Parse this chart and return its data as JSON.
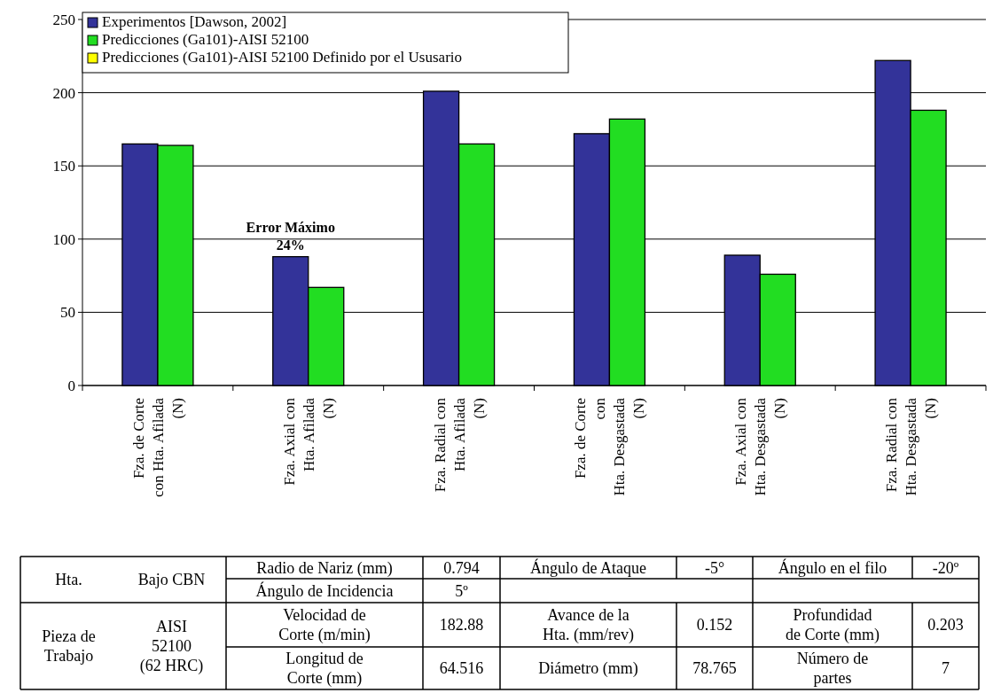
{
  "chart_data": {
    "type": "bar",
    "categories": [
      "Fza. de Corte\ncon Hta. Afilada\n(N)",
      "Fza. Axial con\nHta. Afilada\n(N)",
      "Fza. Radial con\nHta. Afilada\n(N)",
      "Fza. de Corte\ncon\nHta. Desgastada\n(N)",
      "Fza. Axial con\nHta. Desgastada\n(N)",
      "Fza. Radial con\nHta. Desgastada\n(N)"
    ],
    "series": [
      {
        "name": "Experimentos [Dawson, 2002]",
        "color": "#333399",
        "values": [
          165,
          88,
          201,
          172,
          89,
          222
        ]
      },
      {
        "name": "Predicciones (Ga101)-AISI 52100",
        "color": "#22dd22",
        "values": [
          164,
          67,
          165,
          182,
          76,
          188
        ]
      },
      {
        "name": "Predicciones (Ga101)-AISI 52100 Definido por el Ususario",
        "color": "#ffff00",
        "values": [
          null,
          null,
          null,
          null,
          null,
          null
        ]
      }
    ],
    "ylim": [
      0,
      250
    ],
    "yticks": [
      0,
      50,
      100,
      150,
      200,
      250
    ],
    "grid": "y",
    "legend": "top left",
    "annotations": [
      {
        "text": "Error Máximo\n24%",
        "x": "Fza. Axial con\nHta. Afilada\n(N)",
        "y": 88
      },
      "Hta.",
      "Bajo CBN",
      "Radio de Nariz (mm)",
      "0.794",
      "Ángulo de Ataque",
      "-5°",
      "Ángulo en el filo",
      "-20º",
      "Ángulo de Incidencia",
      "5º",
      "Pieza de\nTrabajo",
      "AISI\n52100\n(62 HRC)",
      "Velocidad de\nCorte (m/min)",
      "182.88",
      "Avance de la\nHta. (mm/rev)",
      "0.152",
      "Profundidad\nde Corte (mm)",
      "0.203",
      "Longitud de\nCorte (mm)",
      "64.516",
      "Diámetro (mm)",
      "78.765",
      "Número de\npartes",
      "7"
    ]
  }
}
